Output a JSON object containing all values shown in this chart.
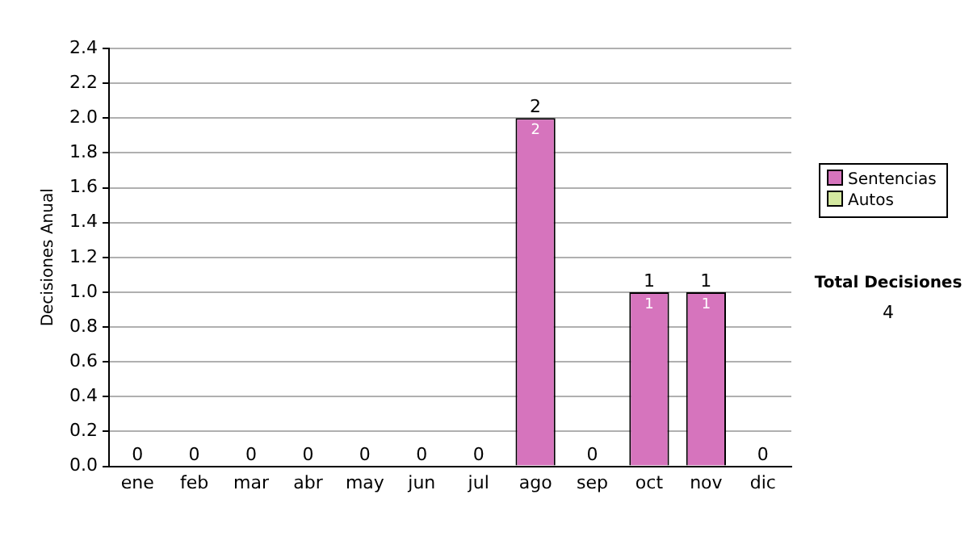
{
  "chart_data": {
    "type": "bar",
    "ylabel": "Decisiones Anual",
    "categories": [
      "ene",
      "feb",
      "mar",
      "abr",
      "may",
      "jun",
      "jul",
      "ago",
      "sep",
      "oct",
      "nov",
      "dic"
    ],
    "stacked": true,
    "series": [
      {
        "name": "Sentencias",
        "color": "#d674bd",
        "values": [
          0,
          0,
          0,
          0,
          0,
          0,
          0,
          2,
          0,
          1,
          1,
          0
        ],
        "value_labels": [
          null,
          null,
          null,
          null,
          null,
          null,
          null,
          "2",
          null,
          "1",
          "1",
          null
        ]
      },
      {
        "name": "Autos",
        "color": "#d4e8a0",
        "values": [
          0,
          0,
          0,
          0,
          0,
          0,
          0,
          0,
          0,
          0,
          0,
          0
        ]
      }
    ],
    "totals": [
      "0",
      "0",
      "0",
      "0",
      "0",
      "0",
      "0",
      "2",
      "0",
      "1",
      "1",
      "0"
    ],
    "ylim": [
      0,
      2.4
    ],
    "yticks": [
      {
        "value": 0,
        "label": "0.0"
      },
      0.2,
      0.4,
      0.6,
      0.8,
      {
        "value": 1,
        "label": "1.0"
      },
      1.2,
      1.4,
      1.6,
      1.8,
      {
        "value": 2,
        "label": "2.0"
      },
      2.2,
      2.4
    ],
    "grid": "y",
    "legend": "right",
    "annotations": [
      "Total Decisiones",
      "4"
    ]
  }
}
